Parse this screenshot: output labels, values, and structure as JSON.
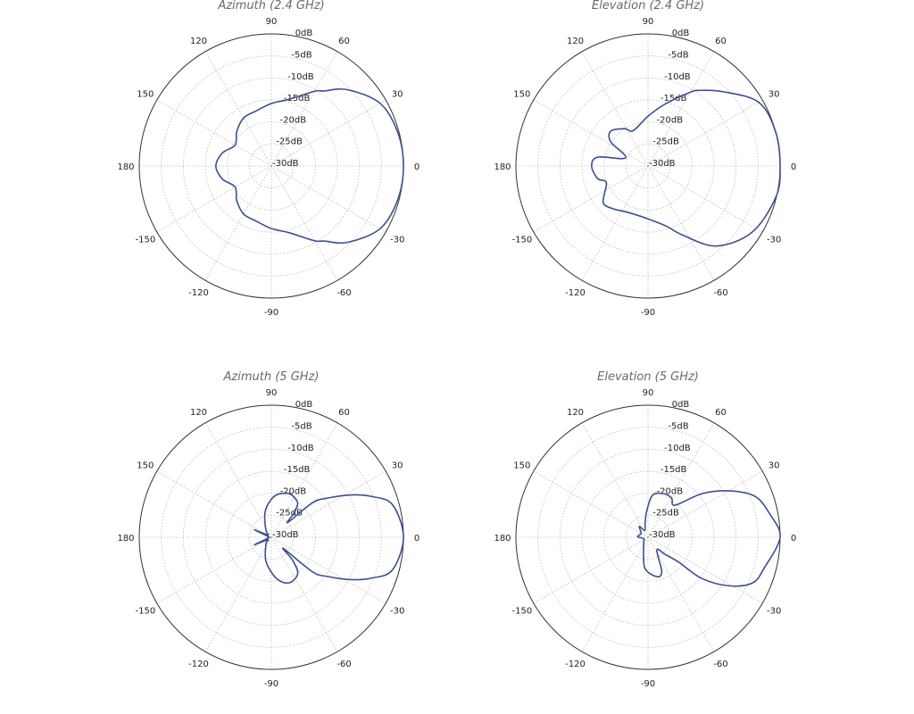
{
  "chart_data": [
    {
      "type": "polar-line",
      "title": "Azimuth (2.4 GHz)",
      "angle_ticks": [
        "0",
        "30",
        "60",
        "90",
        "120",
        "150",
        "180",
        "-150",
        "-120",
        "-90",
        "-60",
        "-30"
      ],
      "angle_tick_values": [
        0,
        30,
        60,
        90,
        120,
        150,
        180,
        -150,
        -120,
        -90,
        -60,
        -30
      ],
      "radial_labels": [
        "0dB",
        "-5dB",
        "-10dB",
        "-15dB",
        "-20dB",
        "-25dB",
        "-30dB"
      ],
      "radial_values": [
        0,
        -5,
        -10,
        -15,
        -20,
        -25,
        -30
      ],
      "rlim": [
        -30,
        0
      ],
      "grid": true,
      "color": "#3b4f92",
      "points": [
        [
          0,
          0
        ],
        [
          15,
          -0.3
        ],
        [
          30,
          -1.5
        ],
        [
          45,
          -5.5
        ],
        [
          55,
          -9.2
        ],
        [
          60,
          -10.4
        ],
        [
          75,
          -14.3
        ],
        [
          90,
          -15.8
        ],
        [
          105,
          -17
        ],
        [
          120,
          -17.4
        ],
        [
          135,
          -18.9
        ],
        [
          150,
          -20.5
        ],
        [
          165,
          -18.5
        ],
        [
          180,
          -17.4
        ],
        [
          -165,
          -18.5
        ],
        [
          -150,
          -20.5
        ],
        [
          -135,
          -18.9
        ],
        [
          -120,
          -17.4
        ],
        [
          -105,
          -17
        ],
        [
          -90,
          -15.8
        ],
        [
          -75,
          -14.3
        ],
        [
          -60,
          -10.4
        ],
        [
          -55,
          -9.2
        ],
        [
          -45,
          -5.5
        ],
        [
          -30,
          -1.5
        ],
        [
          -15,
          -0.3
        ]
      ]
    },
    {
      "type": "polar-line",
      "title": "Elevation (2.4 GHz)",
      "angle_ticks": [
        "0",
        "30",
        "60",
        "90",
        "120",
        "150",
        "180",
        "-150",
        "-120",
        "-90",
        "-60",
        "-30"
      ],
      "angle_tick_values": [
        0,
        30,
        60,
        90,
        120,
        150,
        180,
        -150,
        -120,
        -90,
        -60,
        -30
      ],
      "radial_labels": [
        "0dB",
        "-5dB",
        "-10dB",
        "-15dB",
        "-20dB",
        "-25dB",
        "-30dB"
      ],
      "radial_values": [
        0,
        -5,
        -10,
        -15,
        -20,
        -25,
        -30
      ],
      "rlim": [
        -30,
        0
      ],
      "grid": true,
      "color": "#3b4f92",
      "points": [
        [
          0,
          0
        ],
        [
          15,
          0
        ],
        [
          30,
          -1
        ],
        [
          45,
          -6.1
        ],
        [
          56,
          -9.3
        ],
        [
          60,
          -10.6
        ],
        [
          75,
          -15.5
        ],
        [
          90,
          -18.7
        ],
        [
          113,
          -21.3
        ],
        [
          122,
          -20
        ],
        [
          137,
          -18.4
        ],
        [
          147,
          -19.9
        ],
        [
          160,
          -24.6
        ],
        [
          170,
          -18.4
        ],
        [
          180,
          -17.2
        ],
        [
          -166,
          -18.2
        ],
        [
          -158,
          -19.8
        ],
        [
          -141,
          -16.9
        ],
        [
          -130,
          -17.4
        ],
        [
          -114,
          -18.5
        ],
        [
          -90,
          -18
        ],
        [
          -73,
          -15.7
        ],
        [
          -63,
          -12.3
        ],
        [
          -49.5,
          -6.1
        ],
        [
          -32.5,
          -2
        ],
        [
          -13.5,
          -0.1
        ]
      ]
    },
    {
      "type": "polar-line",
      "title": "Azimuth (5 GHz)",
      "angle_ticks": [
        "0",
        "30",
        "60",
        "90",
        "120",
        "150",
        "180",
        "-150",
        "-120",
        "-90",
        "-60",
        "-30"
      ],
      "angle_tick_values": [
        0,
        30,
        60,
        90,
        120,
        150,
        180,
        -150,
        -120,
        -90,
        -60,
        -30
      ],
      "radial_labels": [
        "0dB",
        "-5dB",
        "-10dB",
        "-15dB",
        "-20dB",
        "-25dB",
        "-30dB"
      ],
      "radial_values": [
        0,
        -5,
        -10,
        -15,
        -20,
        -25,
        -30
      ],
      "rlim": [
        -30,
        0
      ],
      "grid": true,
      "color": "#3b4f92",
      "points": [
        [
          0,
          0
        ],
        [
          15,
          -1.5
        ],
        [
          22,
          -5.3
        ],
        [
          28,
          -9.5
        ],
        [
          35,
          -14.5
        ],
        [
          40,
          -17.8
        ],
        [
          42,
          -25
        ],
        [
          47,
          -22.5
        ],
        [
          53,
          -20.1
        ],
        [
          68,
          -19.3
        ],
        [
          83,
          -20.3
        ],
        [
          95,
          -22.3
        ],
        [
          106,
          -24.6
        ],
        [
          128,
          -28
        ],
        [
          145,
          -29
        ],
        [
          156,
          -25.8
        ],
        [
          166,
          -29.3
        ],
        [
          180,
          -29.2
        ],
        [
          -166,
          -29.3
        ],
        [
          -156,
          -25.8
        ],
        [
          -145,
          -29
        ],
        [
          -128,
          -28
        ],
        [
          -102,
          -24.3
        ],
        [
          -83,
          -20.6
        ],
        [
          -69,
          -18.9
        ],
        [
          -54,
          -19.8
        ],
        [
          -47,
          -23
        ],
        [
          -43,
          -26.3
        ],
        [
          -40,
          -17.8
        ],
        [
          -35,
          -14.5
        ],
        [
          -28,
          -9.5
        ],
        [
          -22,
          -5.3
        ],
        [
          -15,
          -1.5
        ]
      ]
    },
    {
      "type": "polar-line",
      "title": "Elevation (5 GHz)",
      "angle_ticks": [
        "0",
        "30",
        "60",
        "90",
        "120",
        "150",
        "180",
        "-150",
        "-120",
        "-90",
        "-60",
        "-30"
      ],
      "angle_tick_values": [
        0,
        30,
        60,
        90,
        120,
        150,
        180,
        -150,
        -120,
        -90,
        -60,
        -30
      ],
      "radial_labels": [
        "0dB",
        "-5dB",
        "-10dB",
        "-15dB",
        "-20dB",
        "-25dB",
        "-30dB"
      ],
      "radial_values": [
        0,
        -5,
        -10,
        -15,
        -20,
        -25,
        -30
      ],
      "rlim": [
        -30,
        0
      ],
      "grid": true,
      "color": "#3b4f92",
      "points": [
        [
          0,
          0
        ],
        [
          10.6,
          -1.8
        ],
        [
          21,
          -4
        ],
        [
          30,
          -8.9
        ],
        [
          39,
          -14.3
        ],
        [
          50,
          -20.5
        ],
        [
          59,
          -19.6
        ],
        [
          71,
          -19.5
        ],
        [
          84,
          -20.4
        ],
        [
          93,
          -24.1
        ],
        [
          102,
          -26.8
        ],
        [
          115,
          -28.3
        ],
        [
          129,
          -26.8
        ],
        [
          150,
          -28.2
        ],
        [
          177,
          -27.6
        ],
        [
          -160,
          -29
        ],
        [
          -123,
          -28.2
        ],
        [
          -96,
          -23
        ],
        [
          -77,
          -20.8
        ],
        [
          -68,
          -21.7
        ],
        [
          -55,
          -26.5
        ],
        [
          -45,
          -24.5
        ],
        [
          -39,
          -21
        ],
        [
          -37.5,
          -14.7
        ],
        [
          -31,
          -8.6
        ],
        [
          -23.6,
          -4.1
        ],
        [
          -14.8,
          -2.7
        ]
      ]
    }
  ]
}
